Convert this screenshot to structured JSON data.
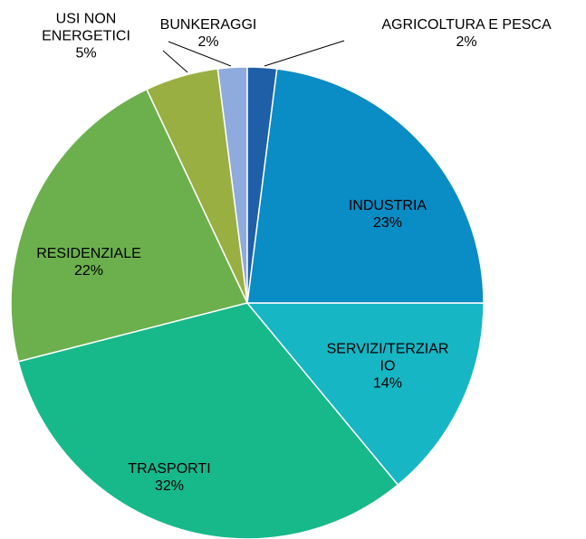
{
  "chart_data": {
    "type": "pie",
    "categories": [
      "AGRICOLTURA E PESCA",
      "INDUSTRIA",
      "SERVIZI/TERZIARIO",
      "TRASPORTI",
      "RESIDENZIALE",
      "USI NON ENERGETICI",
      "BUNKERAGGI"
    ],
    "values": [
      2,
      23,
      14,
      32,
      22,
      5,
      2
    ],
    "value_labels": [
      "2%",
      "23%",
      "14%",
      "32%",
      "22%",
      "5%",
      "2%"
    ],
    "colors": [
      "#1f5fa8",
      "#0a8cc4",
      "#17b6c4",
      "#17b98a",
      "#6cb04e",
      "#9aaf42",
      "#8faadc"
    ]
  }
}
